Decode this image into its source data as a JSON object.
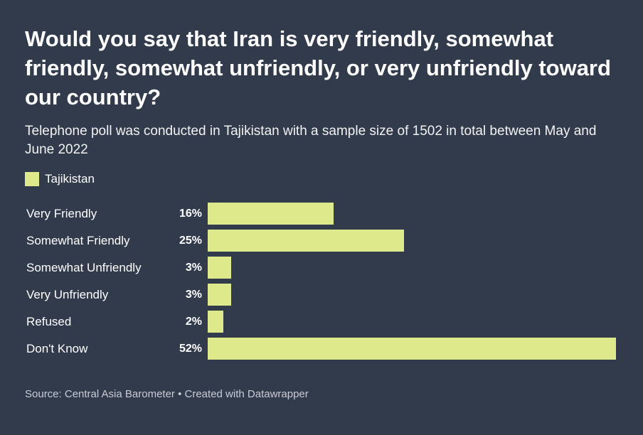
{
  "chart_data": {
    "type": "bar",
    "orientation": "horizontal",
    "title": "Would you say that Iran is very friendly, somewhat friendly, somewhat unfriendly, or very unfriendly toward our country?",
    "subtitle": "Telephone poll was conducted in Tajikistan with a sample size of 1502 in total between May and June 2022",
    "categories": [
      "Very Friendly",
      "Somewhat Friendly",
      "Somewhat Unfriendly",
      "Very Unfriendly",
      "Refused",
      "Don't Know"
    ],
    "series": [
      {
        "name": "Tajikistan",
        "values": [
          16,
          25,
          3,
          3,
          2,
          52
        ],
        "color": "#dde98a"
      }
    ],
    "value_suffix": "%",
    "xlim": [
      0,
      52
    ],
    "legend_position": "top-left",
    "grid": false
  },
  "footer": {
    "source": "Source: Central Asia Barometer • Created with Datawrapper"
  },
  "colors": {
    "background": "#323b4c",
    "bar": "#dde98a",
    "text": "#ffffff"
  }
}
